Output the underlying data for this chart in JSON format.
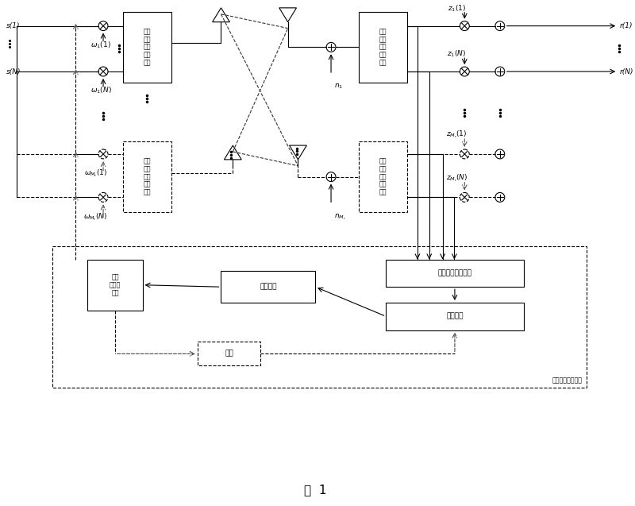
{
  "fig_width": 8.0,
  "fig_height": 6.37,
  "bg_color": "#ffffff",
  "lc": "#000000",
  "title": "图  1",
  "title_fs": 11,
  "fs": 6.5,
  "fs_small": 5.8,
  "ofdm_mod_text": "正交\n频分\n复用\n调制\n单元",
  "ofdm_demod_text": "正交\n频分\n复用\n解调\n单元",
  "csi_text": "获取信道状态信息",
  "cs_text": "码本搜索",
  "fbi_text": "反馈信息",
  "spv_text": "搜索\n预编码\n向量",
  "cb_text": "码本",
  "fbgen_text": "反馈信息生成单元"
}
